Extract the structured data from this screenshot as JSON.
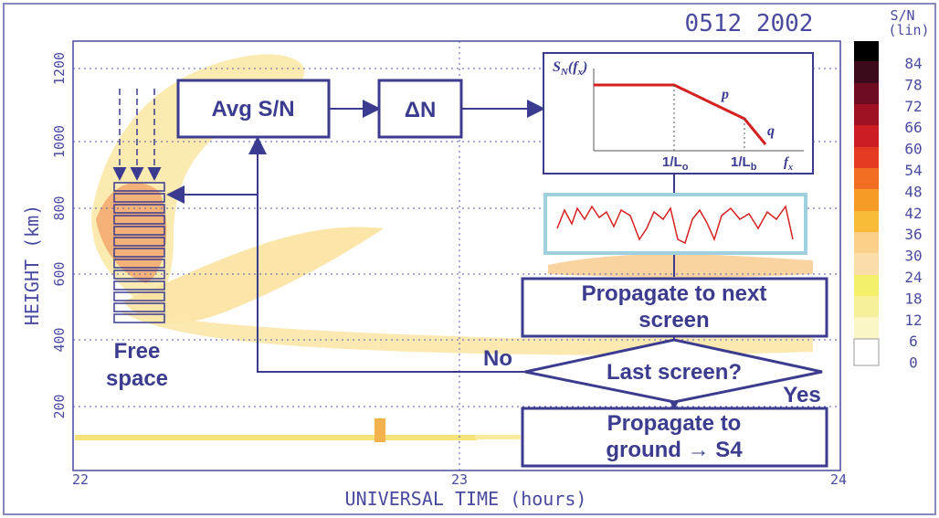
{
  "header": {
    "date": "0512 2002"
  },
  "colorbar": {
    "title": [
      "S/N",
      "(lin)"
    ],
    "labels": [
      "84",
      "78",
      "72",
      "66",
      "60",
      "54",
      "48",
      "42",
      "36",
      "30",
      "24",
      "18",
      "12",
      "6",
      "0"
    ]
  },
  "axes": {
    "y_label": "HEIGHT (km)",
    "y_ticks": [
      "1200",
      "1000",
      "800",
      "600",
      "400",
      "200"
    ],
    "x_label": "UNIVERSAL TIME (hours)",
    "x_ticks": [
      "22",
      "23",
      "24"
    ]
  },
  "annotation": [
    "Free",
    "space"
  ],
  "nodes": [
    {
      "label": "Avg S/N"
    },
    {
      "label": "ΔN"
    },
    {
      "label": [
        "Propagate to next",
        "screen"
      ]
    },
    {
      "label": "Last screen?"
    },
    {
      "label": [
        "Propagate to",
        "ground → S4"
      ]
    }
  ],
  "edge_labels": {
    "no": "No",
    "yes": "Yes"
  },
  "inset": {
    "y_label": [
      "S",
      "N",
      "(",
      "f",
      "x",
      ")"
    ],
    "x_ticks": [
      [
        "1/L",
        "o"
      ],
      [
        "1/L",
        "b"
      ]
    ],
    "x_label": [
      "f",
      "x"
    ],
    "slopes": [
      "p",
      "q"
    ]
  }
}
